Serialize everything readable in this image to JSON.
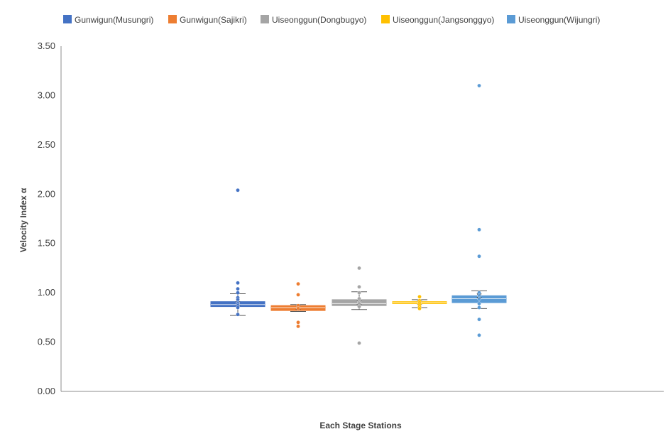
{
  "chart_data": {
    "type": "box",
    "xlabel": "Each Stage Stations",
    "ylabel": "Velocity Index α",
    "ylim": [
      0,
      3.5
    ],
    "yticks": [
      "0.00",
      "0.50",
      "1.00",
      "1.50",
      "2.00",
      "2.50",
      "3.00",
      "3.50"
    ],
    "grid": false,
    "legend_position": "top",
    "series": [
      {
        "name": "Gunwigun(Musungri)",
        "color": "#4472C4",
        "min": 0.77,
        "q1": 0.86,
        "median": 0.88,
        "mean": 0.89,
        "q3": 0.91,
        "max": 0.99,
        "points": [
          2.04,
          1.1,
          1.04,
          1.0,
          0.95,
          0.93,
          0.9,
          0.89,
          0.87,
          0.85,
          0.78
        ]
      },
      {
        "name": "Gunwigun(Sajikri)",
        "color": "#ED7D31",
        "min": 0.81,
        "q1": 0.82,
        "median": 0.85,
        "mean": 0.85,
        "q3": 0.87,
        "max": 0.88,
        "points": [
          1.09,
          0.98,
          0.87,
          0.84,
          0.7,
          0.66
        ]
      },
      {
        "name": "Uiseonggun(Dongbugyo)",
        "color": "#A5A5A5",
        "min": 0.83,
        "q1": 0.87,
        "median": 0.89,
        "mean": 0.9,
        "q3": 0.93,
        "max": 1.01,
        "points": [
          1.25,
          1.06,
          1.0,
          0.94,
          0.91,
          0.89,
          0.86,
          0.49
        ]
      },
      {
        "name": "Uiseonggun(Jangsonggyo)",
        "color": "#FFC000",
        "min": 0.85,
        "q1": 0.89,
        "median": 0.9,
        "mean": 0.9,
        "q3": 0.91,
        "max": 0.93,
        "points": [
          0.96,
          0.92,
          0.9,
          0.88,
          0.86,
          0.84
        ]
      },
      {
        "name": "Uiseonggun(Wijungri)",
        "color": "#5B9BD5",
        "min": 0.84,
        "q1": 0.9,
        "median": 0.94,
        "mean": 0.97,
        "q3": 0.97,
        "max": 1.02,
        "points": [
          3.1,
          1.64,
          1.37,
          1.0,
          0.97,
          0.94,
          0.89,
          0.85,
          0.73,
          0.57
        ]
      }
    ]
  }
}
